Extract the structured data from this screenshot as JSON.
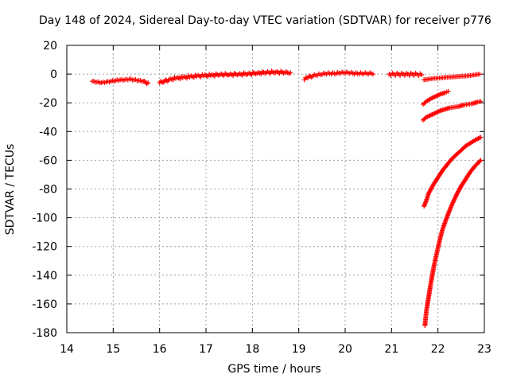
{
  "chart_data": {
    "type": "scatter",
    "title": "Day 148 of 2024, Sidereal Day-to-day VTEC variation (SDTVAR) for receiver p776",
    "xlabel": "GPS time / hours",
    "ylabel": "SDTVAR / TECUs",
    "xlim": [
      14,
      23
    ],
    "ylim": [
      -180,
      20
    ],
    "xticks": [
      14,
      15,
      16,
      17,
      18,
      19,
      20,
      21,
      22,
      23
    ],
    "yticks": [
      20,
      0,
      -20,
      -40,
      -60,
      -80,
      -100,
      -120,
      -140,
      -160,
      -180
    ],
    "grid": true,
    "marker": "+",
    "color": "#ff0000",
    "series": [
      {
        "x": [
          14.55,
          14.65,
          14.75,
          14.85,
          14.95,
          15.05,
          15.15,
          15.25,
          15.35,
          15.45,
          15.55,
          15.65,
          15.75
        ],
        "y": [
          -5,
          -5.5,
          -6,
          -5.5,
          -5,
          -4.5,
          -4,
          -4,
          -3.5,
          -4,
          -4.5,
          -5,
          -6
        ]
      },
      {
        "x": [
          16.0,
          16.1,
          16.2,
          16.35,
          16.5,
          16.65,
          16.8,
          16.95,
          17.1,
          17.3,
          17.5,
          17.7,
          17.9,
          18.1,
          18.3,
          18.5,
          18.7,
          18.82
        ],
        "y": [
          -6,
          -5,
          -4,
          -3,
          -2.5,
          -2,
          -1.5,
          -1.2,
          -1,
          -0.5,
          -0.5,
          -0.3,
          0,
          0.5,
          1,
          1.2,
          1,
          1
        ]
      },
      {
        "x": [
          19.12,
          19.2,
          19.3,
          19.4,
          19.5,
          19.6,
          19.7,
          19.8,
          19.9,
          20.0,
          20.1,
          20.2,
          20.3,
          20.4,
          20.5,
          20.6
        ],
        "y": [
          -4,
          -2.5,
          -1.5,
          -1,
          -0.5,
          0,
          0,
          0,
          0.5,
          0.5,
          0.5,
          0,
          0,
          0,
          0,
          0
        ]
      },
      {
        "x": [
          20.95,
          21.05,
          21.15,
          21.25,
          21.35,
          21.45,
          21.55,
          21.65
        ],
        "y": [
          0,
          0,
          0,
          0,
          0,
          0,
          0,
          -0.5
        ]
      },
      {
        "x": [
          21.7,
          21.8,
          21.9,
          22.0,
          22.1,
          22.2,
          22.3,
          22.4,
          22.5,
          22.6,
          22.7,
          22.8,
          22.9
        ],
        "y": [
          -4,
          -3.5,
          -3,
          -2.8,
          -2.5,
          -2.2,
          -2,
          -1.8,
          -1.5,
          -1.3,
          -1,
          -0.5,
          0
        ]
      },
      {
        "x": [
          21.68,
          21.75,
          21.85,
          21.95,
          22.05,
          22.15,
          22.22
        ],
        "y": [
          -21,
          -19,
          -17,
          -15.5,
          -14,
          -13,
          -12
        ]
      },
      {
        "x": [
          21.68,
          21.75,
          21.85,
          21.95,
          22.05,
          22.15,
          22.25,
          22.35,
          22.45,
          22.55,
          22.65,
          22.75,
          22.85,
          22.92
        ],
        "y": [
          -32,
          -30,
          -28.5,
          -27,
          -25.5,
          -24.5,
          -23.5,
          -23,
          -22.5,
          -21.5,
          -21,
          -20.5,
          -19.5,
          -19
        ]
      },
      {
        "x": [
          21.7,
          21.75,
          21.8,
          21.9,
          22.0,
          22.1,
          22.2,
          22.3,
          22.4,
          22.5,
          22.6,
          22.7,
          22.8,
          22.92
        ],
        "y": [
          -92,
          -88,
          -83,
          -77,
          -72,
          -67,
          -63,
          -59,
          -56,
          -53,
          -50,
          -48,
          -46,
          -44
        ]
      },
      {
        "x": [
          21.72,
          21.75,
          21.8,
          21.85,
          21.9,
          21.95,
          22.0,
          22.05,
          22.1,
          22.2,
          22.3,
          22.4,
          22.5,
          22.6,
          22.7,
          22.8,
          22.92
        ],
        "y": [
          -175,
          -165,
          -155,
          -145,
          -136,
          -128,
          -121,
          -114,
          -108,
          -99,
          -91,
          -84,
          -78,
          -73,
          -68,
          -64,
          -60
        ]
      }
    ]
  }
}
